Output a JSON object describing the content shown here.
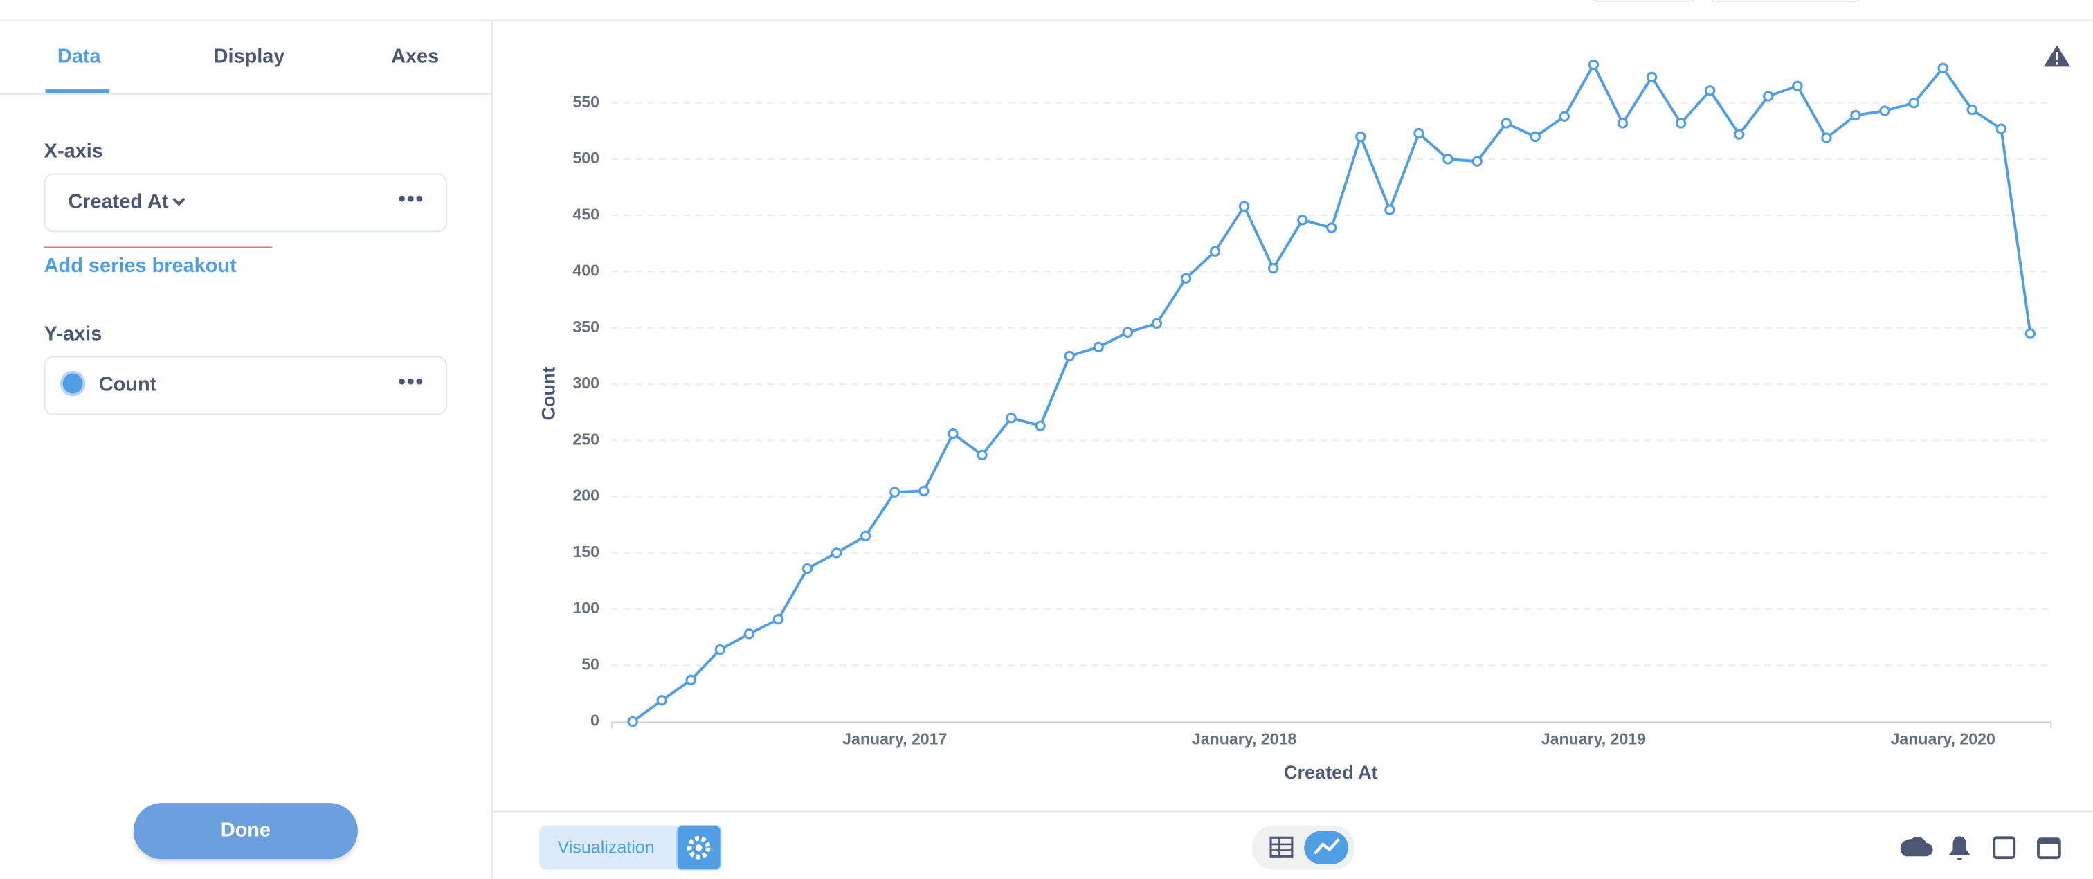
{
  "sidebar": {
    "tabs": [
      "Data",
      "Display",
      "Axes"
    ],
    "x_axis_heading": "X-axis",
    "x_field": "Created At",
    "add_breakout": "Add series breakout",
    "y_axis_heading": "Y-axis",
    "y_field": "Count",
    "done": "Done"
  },
  "footer": {
    "visualization": "Visualization"
  },
  "chart_data": {
    "type": "line",
    "x_label": "Created At",
    "y_label": "Count",
    "categories": [
      null,
      null,
      null,
      null,
      null,
      null,
      null,
      null,
      null,
      "January, 2017",
      null,
      null,
      null,
      null,
      null,
      null,
      null,
      null,
      null,
      null,
      null,
      "January, 2018",
      null,
      null,
      null,
      null,
      null,
      null,
      null,
      null,
      null,
      null,
      null,
      "January, 2019",
      null,
      null,
      null,
      null,
      null,
      null,
      null,
      null,
      null,
      null,
      null,
      "January, 2020",
      null,
      null,
      null
    ],
    "series": [
      {
        "name": "Count",
        "color": "#509ee3",
        "values": [
          0,
          19,
          37,
          64,
          78,
          91,
          136,
          150,
          165,
          204,
          205,
          256,
          237,
          270,
          263,
          325,
          333,
          346,
          354,
          394,
          418,
          458,
          403,
          446,
          439,
          520,
          455,
          523,
          500,
          498,
          532,
          520,
          538,
          584,
          532,
          573,
          532,
          561,
          522,
          556,
          565,
          519,
          539,
          543,
          550,
          581,
          544,
          527,
          345
        ]
      }
    ],
    "ylim": [
      0,
      600
    ],
    "yticks": [
      0,
      50,
      100,
      150,
      200,
      250,
      300,
      350,
      400,
      450,
      500,
      550
    ],
    "grid": true
  }
}
